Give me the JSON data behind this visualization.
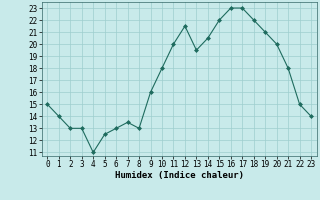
{
  "x": [
    0,
    1,
    2,
    3,
    4,
    5,
    6,
    7,
    8,
    9,
    10,
    11,
    12,
    13,
    14,
    15,
    16,
    17,
    18,
    19,
    20,
    21,
    22,
    23
  ],
  "y": [
    15,
    14,
    13,
    13,
    11,
    12.5,
    13,
    13.5,
    13,
    16,
    18,
    20,
    21.5,
    19.5,
    20.5,
    22,
    23,
    23,
    22,
    21,
    20,
    18,
    15,
    14
  ],
  "line_color": "#1e6b5e",
  "marker_color": "#1e6b5e",
  "bg_color": "#c8eaea",
  "grid_color": "#9ecece",
  "xlabel": "Humidex (Indice chaleur)",
  "ylim_min": 11,
  "ylim_max": 23,
  "xlim_min": 0,
  "xlim_max": 23,
  "yticks": [
    11,
    12,
    13,
    14,
    15,
    16,
    17,
    18,
    19,
    20,
    21,
    22,
    23
  ],
  "xticks": [
    0,
    1,
    2,
    3,
    4,
    5,
    6,
    7,
    8,
    9,
    10,
    11,
    12,
    13,
    14,
    15,
    16,
    17,
    18,
    19,
    20,
    21,
    22,
    23
  ],
  "label_fontsize": 6.5,
  "tick_fontsize": 5.5
}
